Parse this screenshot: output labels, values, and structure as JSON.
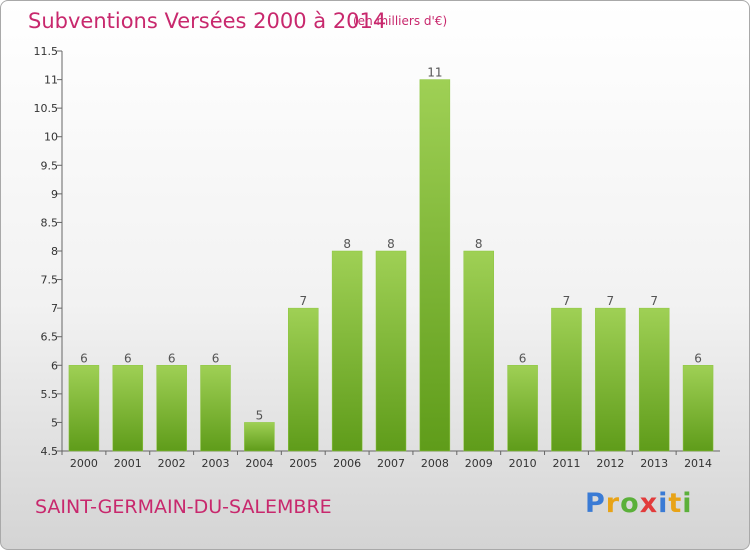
{
  "header": {
    "title": "Subventions Versées 2000 à 2014",
    "unit": "(en milliers d'€)"
  },
  "footer": {
    "commune": "SAINT-GERMAIN-DU-SALEMBRE",
    "logo": [
      "P",
      "r",
      "o",
      "x",
      "i",
      "t",
      "i"
    ]
  },
  "colors": {
    "title": "#c8286d",
    "bar_top": "#9fd055",
    "bar_bottom": "#5f9c1a",
    "logo": [
      "#3a7bd5",
      "#e8a317",
      "#5bb03a",
      "#e23b3b",
      "#3a7bd5",
      "#e8a317",
      "#5bb03a"
    ]
  },
  "chart_data": {
    "type": "bar",
    "categories": [
      "2000",
      "2001",
      "2002",
      "2003",
      "2004",
      "2005",
      "2006",
      "2007",
      "2008",
      "2009",
      "2010",
      "2011",
      "2012",
      "2013",
      "2014"
    ],
    "values": [
      6,
      6,
      6,
      6,
      5,
      7,
      8,
      8,
      11,
      8,
      6,
      7,
      7,
      7,
      6
    ],
    "value_labels": [
      "6",
      "6",
      "6",
      "6",
      "5",
      "7",
      "8",
      "8",
      "11",
      "8",
      "6",
      "7",
      "7",
      "7",
      "6"
    ],
    "yticks": [
      "4.5",
      "5",
      "5.5",
      "6",
      "6.5",
      "7",
      "7.5",
      "8",
      "8.5",
      "9",
      "9.5",
      "10",
      "10.5",
      "11",
      "11.5"
    ],
    "ylim": [
      4.5,
      11.5
    ],
    "grid": false
  }
}
